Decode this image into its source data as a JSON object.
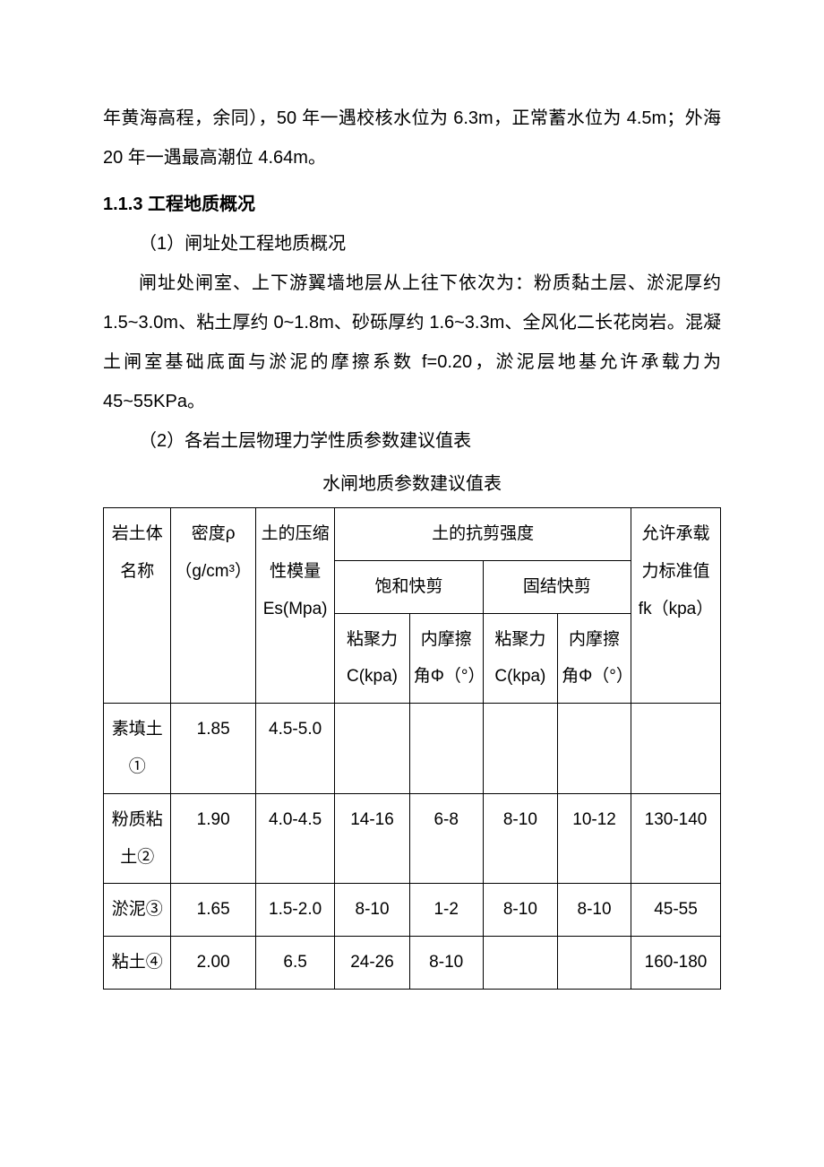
{
  "para1": "年黄海高程，余同），50 年一遇校核水位为 6.3m，正常蓄水位为 4.5m；外海 20 年一遇最高潮位 4.64m。",
  "heading113": "1.1.3 工程地质概况",
  "para2": "（1）闸址处工程地质概况",
  "para3": "闸址处闸室、上下游翼墙地层从上往下依次为：粉质黏土层、淤泥厚约 1.5~3.0m、粘土厚约 0~1.8m、砂砾厚约 1.6~3.3m、全风化二长花岗岩。混凝土闸室基础底面与淤泥的摩擦系数 f=0.20，淤泥层地基允许承载力为 45~55KPa。",
  "para4": "（2）各岩土层物理力学性质参数建议值表",
  "tableCaption": "水闸地质参数建议值表",
  "table": {
    "header": {
      "h_name": "岩土体名称",
      "h_density": "密度ρ（g/cm³）",
      "h_es": "土的压缩性模量Es(Mpa)",
      "h_shear": "土的抗剪强度",
      "h_sat": "饱和快剪",
      "h_consol": "固结快剪",
      "h_c1": "粘聚力C(kpa)",
      "h_phi1": "内摩擦角Φ（°）",
      "h_c2": "粘聚力C(kpa)",
      "h_phi2": "内摩擦角Φ（°）",
      "h_fk": "允许承载力标准值 fk（kpa）"
    },
    "rows": [
      {
        "name": "素填土①",
        "density": "1.85",
        "es": "4.5-5.0",
        "c1": "",
        "phi1": "",
        "c2": "",
        "phi2": "",
        "fk": ""
      },
      {
        "name": "粉质粘土②",
        "density": "1.90",
        "es": "4.0-4.5",
        "c1": "14-16",
        "phi1": "6-8",
        "c2": "8-10",
        "phi2": "10-12",
        "fk": "130-140"
      },
      {
        "name": "淤泥③",
        "density": "1.65",
        "es": "1.5-2.0",
        "c1": "8-10",
        "phi1": "1-2",
        "c2": "8-10",
        "phi2": "8-10",
        "fk": "45-55"
      },
      {
        "name": "粘土④",
        "density": "2.00",
        "es": "6.5",
        "c1": "24-26",
        "phi1": "8-10",
        "c2": "",
        "phi2": "",
        "fk": "160-180"
      }
    ]
  }
}
